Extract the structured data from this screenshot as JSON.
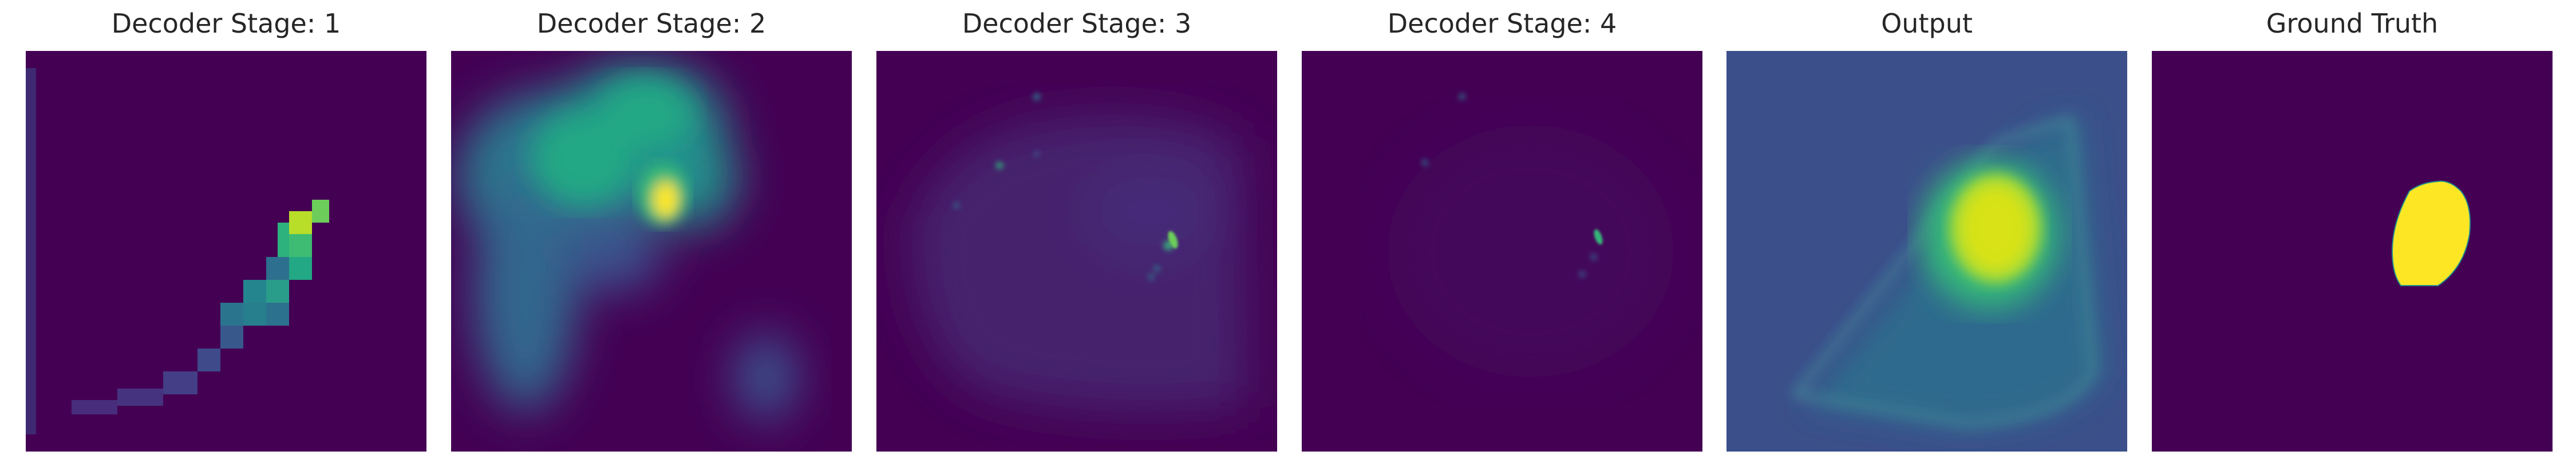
{
  "figure": {
    "panels": [
      {
        "title": "Decoder Stage: 1"
      },
      {
        "title": "Decoder Stage: 2"
      },
      {
        "title": "Decoder Stage: 3"
      },
      {
        "title": "Decoder Stage: 4"
      },
      {
        "title": "Output"
      },
      {
        "title": "Ground Truth"
      }
    ]
  },
  "colors": {
    "viridis_low": "#440154",
    "viridis_mid": "#21918c",
    "viridis_high": "#fde725",
    "title_text": "#262626"
  }
}
